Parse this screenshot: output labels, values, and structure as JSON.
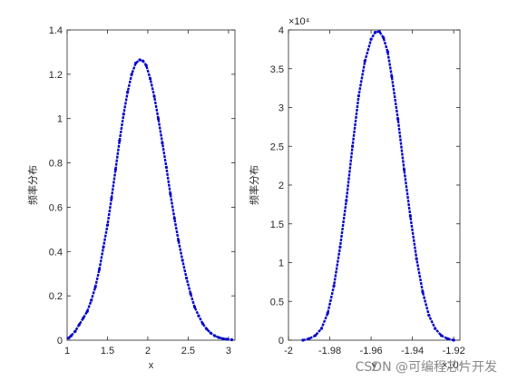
{
  "chart_data": [
    {
      "type": "scatter",
      "xlabel": "x",
      "ylabel": "频率分布",
      "xlim": [
        1,
        3.08
      ],
      "ylim": [
        0,
        1.4
      ],
      "xticks": [
        "1",
        "1.5",
        "2",
        "2.5",
        "3"
      ],
      "xtick_values": [
        1,
        1.5,
        2,
        2.5,
        3
      ],
      "yticks": [
        "0",
        "0.2",
        "0.4",
        "0.6",
        "0.8",
        "1",
        "1.2",
        "1.4"
      ],
      "ytick_values": [
        0,
        0.2,
        0.4,
        0.6,
        0.8,
        1,
        1.2,
        1.4
      ],
      "series_color": "#0000cc",
      "x": [
        1.02,
        1.05,
        1.1,
        1.15,
        1.2,
        1.25,
        1.3,
        1.35,
        1.4,
        1.45,
        1.5,
        1.55,
        1.6,
        1.65,
        1.7,
        1.75,
        1.8,
        1.85,
        1.9,
        1.94,
        1.98,
        2.03,
        2.08,
        2.13,
        2.18,
        2.23,
        2.28,
        2.33,
        2.38,
        2.43,
        2.48,
        2.53,
        2.58,
        2.63,
        2.68,
        2.73,
        2.78,
        2.83,
        2.88,
        2.93,
        2.98,
        3.04
      ],
      "y": [
        0.01,
        0.02,
        0.04,
        0.07,
        0.1,
        0.13,
        0.18,
        0.24,
        0.32,
        0.42,
        0.52,
        0.64,
        0.77,
        0.9,
        1.02,
        1.12,
        1.2,
        1.25,
        1.265,
        1.26,
        1.24,
        1.18,
        1.1,
        1.0,
        0.89,
        0.78,
        0.66,
        0.55,
        0.45,
        0.36,
        0.28,
        0.21,
        0.15,
        0.11,
        0.075,
        0.05,
        0.032,
        0.02,
        0.012,
        0.007,
        0.004,
        0.002
      ]
    },
    {
      "type": "scatter",
      "xlabel": "y",
      "xlabel_multiplier": "×10⁴",
      "ylabel": "频率分布",
      "ylabel_multiplier": "×10⁴",
      "xlim": [
        -2.0,
        -1.917
      ],
      "ylim": [
        0,
        4
      ],
      "xticks": [
        "-2",
        "-1.98",
        "-1.96",
        "-1.94",
        "-1.92"
      ],
      "xtick_values": [
        -2.0,
        -1.98,
        -1.96,
        -1.94,
        -1.92
      ],
      "yticks": [
        "0",
        "0.5",
        "1",
        "1.5",
        "2",
        "2.5",
        "3",
        "3.5",
        "4"
      ],
      "ytick_values": [
        0,
        0.5,
        1,
        1.5,
        2,
        2.5,
        3,
        3.5,
        4
      ],
      "series_color": "#0000cc",
      "x": [
        -1.993,
        -1.99,
        -1.987,
        -1.984,
        -1.981,
        -1.978,
        -1.975,
        -1.972,
        -1.969,
        -1.966,
        -1.963,
        -1.96,
        -1.958,
        -1.956,
        -1.954,
        -1.952,
        -1.95,
        -1.947,
        -1.944,
        -1.941,
        -1.938,
        -1.935,
        -1.932,
        -1.929,
        -1.926,
        -1.923,
        -1.92
      ],
      "y": [
        0.0,
        0.02,
        0.06,
        0.15,
        0.35,
        0.7,
        1.2,
        1.8,
        2.5,
        3.15,
        3.6,
        3.88,
        3.97,
        3.98,
        3.9,
        3.72,
        3.4,
        2.85,
        2.2,
        1.6,
        1.05,
        0.62,
        0.32,
        0.15,
        0.06,
        0.02,
        0.0
      ]
    }
  ],
  "watermark": "CSDN @可编程芯片开发"
}
